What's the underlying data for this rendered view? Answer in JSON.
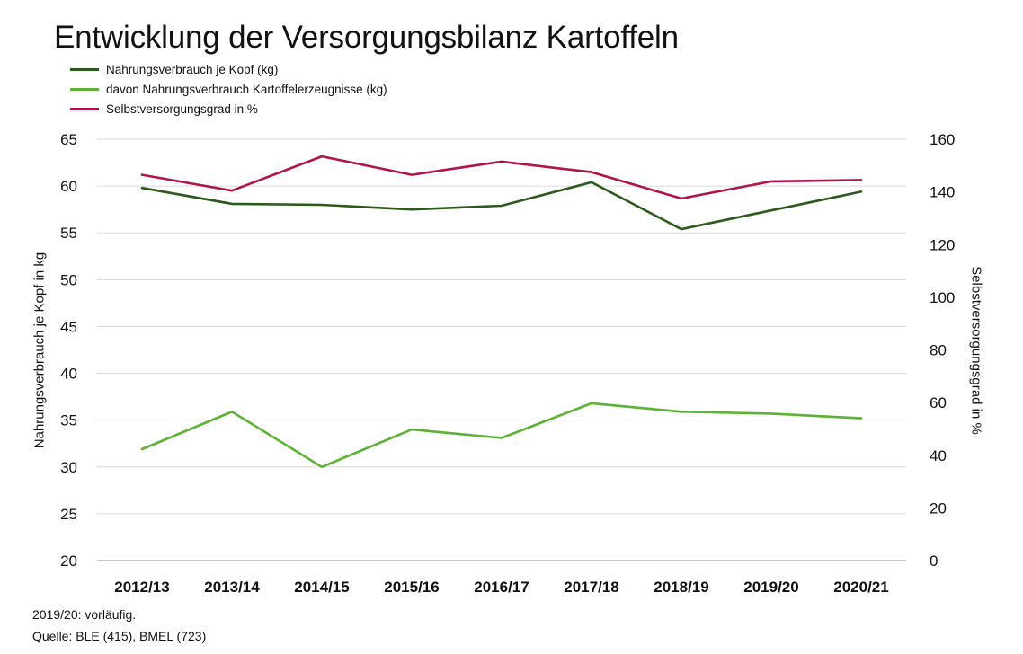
{
  "title": "Entwicklung der Versorgungsbilanz Kartoffeln",
  "notes": {
    "line1": "2019/20: vorläufig.",
    "line2": "Quelle: BLE (415), BMEL (723)"
  },
  "chart_data": {
    "type": "line",
    "categories": [
      "2012/13",
      "2013/14",
      "2014/15",
      "2015/16",
      "2016/17",
      "2017/18",
      "2018/19",
      "2019/20",
      "2020/21"
    ],
    "ylabel": "Nahrungsverbrauch je Kopf in kg",
    "ylabel_right": "Selbstversorgungsgrad in %",
    "ylim": [
      20,
      65
    ],
    "yticks": [
      20,
      25,
      30,
      35,
      40,
      45,
      50,
      55,
      60,
      65
    ],
    "ylim_right": [
      0,
      160
    ],
    "yticks_right": [
      0,
      20,
      40,
      60,
      80,
      100,
      120,
      140,
      160
    ],
    "grid": true,
    "legend_position": "top-left",
    "series": [
      {
        "name": "Nahrungsverbrauch je Kopf (kg)",
        "axis": "left",
        "color": "#2c5a1c",
        "values": [
          59.8,
          58.1,
          58.0,
          57.5,
          57.9,
          60.4,
          55.4,
          57.4,
          59.4
        ]
      },
      {
        "name": "davon Nahrungsverbrauch Kartoffelerzeugnisse (kg)",
        "axis": "left",
        "color": "#5bb234",
        "values": [
          31.9,
          35.9,
          30.0,
          34.0,
          33.1,
          36.8,
          35.9,
          35.7,
          35.2
        ]
      },
      {
        "name": "Selbstversorgungsgrad in %",
        "axis": "right",
        "color": "#b01545",
        "values": [
          146.5,
          140.5,
          153.5,
          146.5,
          151.5,
          147.5,
          137.5,
          144.0,
          144.5
        ]
      }
    ]
  }
}
